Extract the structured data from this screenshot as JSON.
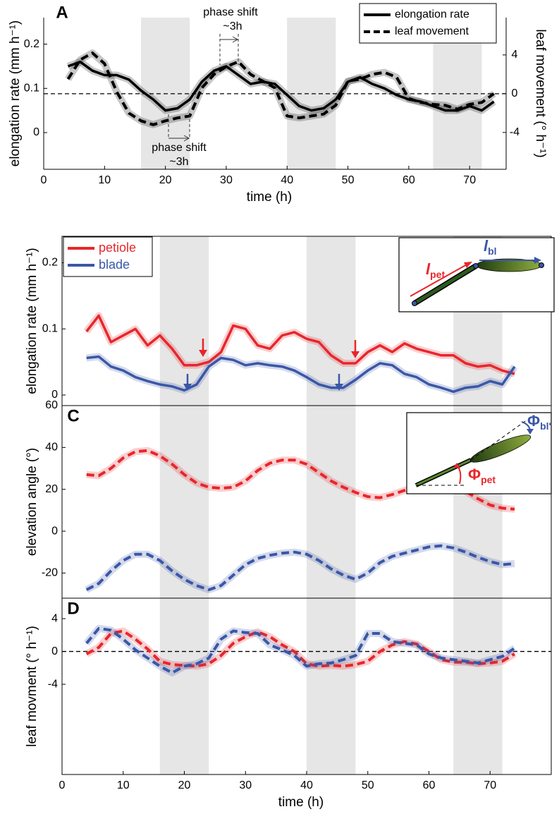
{
  "chart_data": [
    {
      "type": "line",
      "label": "A",
      "xlabel": "time (h)",
      "ylabel": "elongation rate (mm h⁻¹)",
      "y2label": "leaf movement (° h⁻¹)",
      "xlim": [
        0,
        76
      ],
      "xticks": [
        0,
        10,
        20,
        30,
        40,
        50,
        60,
        70
      ],
      "ylim": [
        -0.083,
        0.26
      ],
      "yticks": [
        0,
        0.1,
        0.2
      ],
      "y2lim": [
        -7.8,
        7.85
      ],
      "y2ticks": [
        -4,
        0,
        4
      ],
      "hline": {
        "axis": "y2",
        "value": 0
      },
      "shaded": [
        [
          16,
          24
        ],
        [
          40,
          48
        ],
        [
          64,
          72
        ]
      ],
      "legend": "upper right",
      "annotations": [
        "phase shift",
        "~3h",
        "phase shift",
        "~3h"
      ],
      "x": [
        4,
        6,
        8,
        10,
        12,
        14,
        16,
        18,
        20,
        22,
        24,
        26,
        28,
        30,
        32,
        34,
        36,
        38,
        40,
        42,
        44,
        46,
        48,
        50,
        52,
        54,
        56,
        58,
        60,
        62,
        64,
        66,
        68,
        70,
        72,
        74
      ],
      "series": [
        {
          "name": "elongation rate",
          "color": "#000000",
          "style": "solid",
          "values": [
            0.15,
            0.16,
            0.14,
            0.13,
            0.13,
            0.12,
            0.095,
            0.075,
            0.05,
            0.055,
            0.075,
            0.115,
            0.14,
            0.15,
            0.13,
            0.11,
            0.115,
            0.11,
            0.085,
            0.06,
            0.05,
            0.055,
            0.075,
            0.115,
            0.125,
            0.11,
            0.1,
            0.085,
            0.075,
            0.07,
            0.06,
            0.05,
            0.05,
            0.06,
            0.05,
            0.07
          ]
        },
        {
          "name": "leaf movement",
          "color": "#000000",
          "style": "dashed",
          "axis": "y2",
          "values": [
            1.5,
            3.5,
            4.2,
            3.1,
            0.2,
            -2,
            -2.8,
            -3.2,
            -2.8,
            -2.5,
            -2.3,
            0.6,
            2,
            2.8,
            3.3,
            2,
            1.3,
            0.6,
            -2.3,
            -2.5,
            -2.3,
            -2.1,
            -1.2,
            1.3,
            1.5,
            2,
            2.2,
            1.7,
            -0.5,
            -0.9,
            -1.1,
            -1.2,
            -1.6,
            -1.1,
            -0.9,
            0
          ]
        }
      ]
    },
    {
      "type": "line",
      "label": "B",
      "ylabel": "elongation rate (mm h⁻¹)",
      "xlim": [
        0,
        80
      ],
      "ylim": [
        -0.016,
        0.24
      ],
      "yticks": [
        0,
        0.1,
        0.2
      ],
      "shaded": [
        [
          16,
          24
        ],
        [
          40,
          48
        ],
        [
          64,
          72
        ]
      ],
      "legend": "upper left",
      "inset": {
        "pet": {
          "symbol": "l",
          "subscript": "pet"
        },
        "bl": {
          "symbol": "l",
          "subscript": "bl"
        }
      },
      "x": [
        4,
        6,
        8,
        10,
        12,
        14,
        16,
        18,
        20,
        22,
        24,
        26,
        28,
        30,
        32,
        34,
        36,
        38,
        40,
        42,
        44,
        46,
        48,
        50,
        52,
        54,
        56,
        58,
        60,
        62,
        64,
        66,
        68,
        70,
        72,
        74
      ],
      "series": [
        {
          "name": "petiole",
          "color": "#e8262b",
          "style": "solid",
          "values": [
            0.096,
            0.12,
            0.08,
            0.09,
            0.1,
            0.075,
            0.09,
            0.07,
            0.045,
            0.045,
            0.05,
            0.065,
            0.105,
            0.1,
            0.075,
            0.07,
            0.09,
            0.095,
            0.085,
            0.08,
            0.06,
            0.048,
            0.048,
            0.065,
            0.075,
            0.065,
            0.078,
            0.07,
            0.065,
            0.06,
            0.06,
            0.048,
            0.043,
            0.045,
            0.037,
            0.032
          ]
        },
        {
          "name": "blade",
          "color": "#3a57a7",
          "style": "solid",
          "values": [
            0.056,
            0.058,
            0.043,
            0.037,
            0.027,
            0.021,
            0.016,
            0.013,
            0.007,
            0.016,
            0.043,
            0.056,
            0.053,
            0.045,
            0.048,
            0.045,
            0.043,
            0.037,
            0.027,
            0.016,
            0.011,
            0.011,
            0.023,
            0.037,
            0.048,
            0.045,
            0.032,
            0.027,
            0.016,
            0.011,
            0.005,
            0.011,
            0.013,
            0.021,
            0.016,
            0.043
          ]
        }
      ]
    },
    {
      "type": "line",
      "label": "C",
      "ylabel": "elevation angle (°)",
      "xlim": [
        0,
        80
      ],
      "ylim": [
        -32,
        60
      ],
      "yticks": [
        -20,
        0,
        20,
        40,
        60
      ],
      "shaded": [
        [
          16,
          24
        ],
        [
          40,
          48
        ],
        [
          64,
          72
        ]
      ],
      "inset": {
        "pet": {
          "symbol": "Φ",
          "subscript": "pet"
        },
        "bl": {
          "symbol": "Φ",
          "subscript": "bl'"
        }
      },
      "x": [
        4,
        6,
        8,
        10,
        12,
        14,
        16,
        18,
        20,
        22,
        24,
        26,
        28,
        30,
        32,
        34,
        36,
        38,
        40,
        42,
        44,
        46,
        48,
        50,
        52,
        54,
        56,
        58,
        60,
        62,
        64,
        66,
        68,
        70,
        72,
        74
      ],
      "series": [
        {
          "color": "#e8262b",
          "style": "dashed",
          "values": [
            27,
            26.5,
            30,
            35,
            38,
            38.5,
            36,
            32,
            27,
            23,
            21,
            20.5,
            21,
            24,
            29,
            32.5,
            34,
            34,
            32,
            28,
            24,
            21,
            18.5,
            16.5,
            16,
            17.5,
            19.5,
            21.5,
            23,
            23.5,
            22,
            19,
            15.5,
            12.5,
            11,
            10.5
          ]
        },
        {
          "color": "#3a57a7",
          "style": "dashed",
          "values": [
            -28,
            -25,
            -19,
            -14,
            -11,
            -11,
            -14,
            -19,
            -23,
            -26,
            -28,
            -26,
            -21,
            -16,
            -13,
            -11.5,
            -10.5,
            -10,
            -11,
            -14,
            -18,
            -21,
            -23,
            -20,
            -15,
            -12,
            -10.5,
            -9,
            -7.5,
            -7,
            -8,
            -10,
            -12.5,
            -14.5,
            -16,
            -15.5
          ]
        }
      ]
    },
    {
      "type": "line",
      "label": "D",
      "xlabel": "time (h)",
      "ylabel": "leaf movment (° h⁻¹)",
      "xlim": [
        0,
        80
      ],
      "xticks": [
        0,
        10,
        20,
        30,
        40,
        50,
        60,
        70
      ],
      "ylim": [
        -15,
        6.5
      ],
      "yticks": [
        -4,
        0,
        4
      ],
      "hline": {
        "axis": "y",
        "value": 0
      },
      "shaded": [
        [
          16,
          24
        ],
        [
          40,
          48
        ],
        [
          64,
          72
        ]
      ],
      "x": [
        4,
        6,
        8,
        10,
        12,
        14,
        16,
        18,
        20,
        22,
        24,
        26,
        28,
        30,
        32,
        34,
        36,
        38,
        40,
        42,
        44,
        46,
        48,
        50,
        52,
        54,
        56,
        58,
        60,
        62,
        64,
        66,
        68,
        70,
        72,
        74
      ],
      "series": [
        {
          "color": "#e8262b",
          "style": "dashed",
          "values": [
            -0.3,
            0.5,
            2.2,
            2.5,
            1.5,
            0.3,
            -1.2,
            -1.6,
            -1.7,
            -1.8,
            -1.5,
            -0.5,
            1,
            1.8,
            2.4,
            1.8,
            0.8,
            0,
            -1.5,
            -1.8,
            -1.7,
            -1.8,
            -1.6,
            -1.2,
            0,
            0.8,
            1.2,
            0.9,
            0,
            -1,
            -1.3,
            -1.3,
            -1.5,
            -1.4,
            -1.2,
            -0.3
          ]
        },
        {
          "color": "#3a57a7",
          "style": "dashed",
          "values": [
            1,
            2.8,
            2.6,
            1.5,
            0.2,
            -0.8,
            -1.8,
            -2.6,
            -1.8,
            -1.5,
            -0.8,
            1.5,
            2.5,
            2.3,
            2.2,
            0.8,
            0.2,
            -0.5,
            -1.8,
            -1.5,
            -1.4,
            -1,
            -0.5,
            2.2,
            2.2,
            1.2,
            1,
            0.8,
            -0.3,
            -0.8,
            -1,
            -1.2,
            -1.4,
            -1,
            -0.6,
            0.4
          ]
        }
      ]
    }
  ]
}
